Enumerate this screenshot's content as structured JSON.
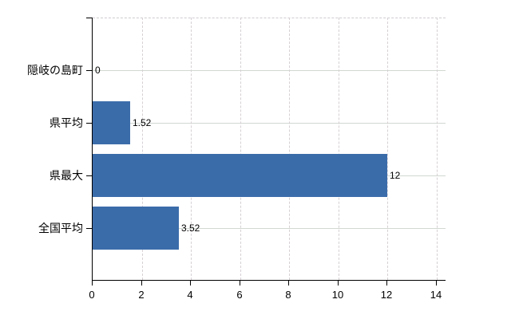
{
  "chart_data": {
    "type": "bar",
    "orientation": "horizontal",
    "title": "",
    "xlabel": "",
    "ylabel": "",
    "categories": [
      "隠岐の島町",
      "県平均",
      "県最大",
      "全国平均"
    ],
    "values": [
      0,
      1.52,
      12,
      3.52
    ],
    "value_labels": [
      "0",
      "1.52",
      "12",
      "3.52"
    ],
    "xlim": [
      0,
      14.4
    ],
    "xticks": [
      0,
      2,
      4,
      6,
      8,
      10,
      12,
      14
    ],
    "xtick_labels": [
      "0",
      "2",
      "4",
      "6",
      "8",
      "10",
      "12",
      "14"
    ],
    "grid": "both",
    "legend": "none",
    "colors": {
      "bar": "#3b6caa",
      "axis": "#000000",
      "gridline_horizontal": "#d2d8d2",
      "gridline_vertical": "#d6d0d4",
      "text": "#000000",
      "background": "#ffffff"
    }
  }
}
